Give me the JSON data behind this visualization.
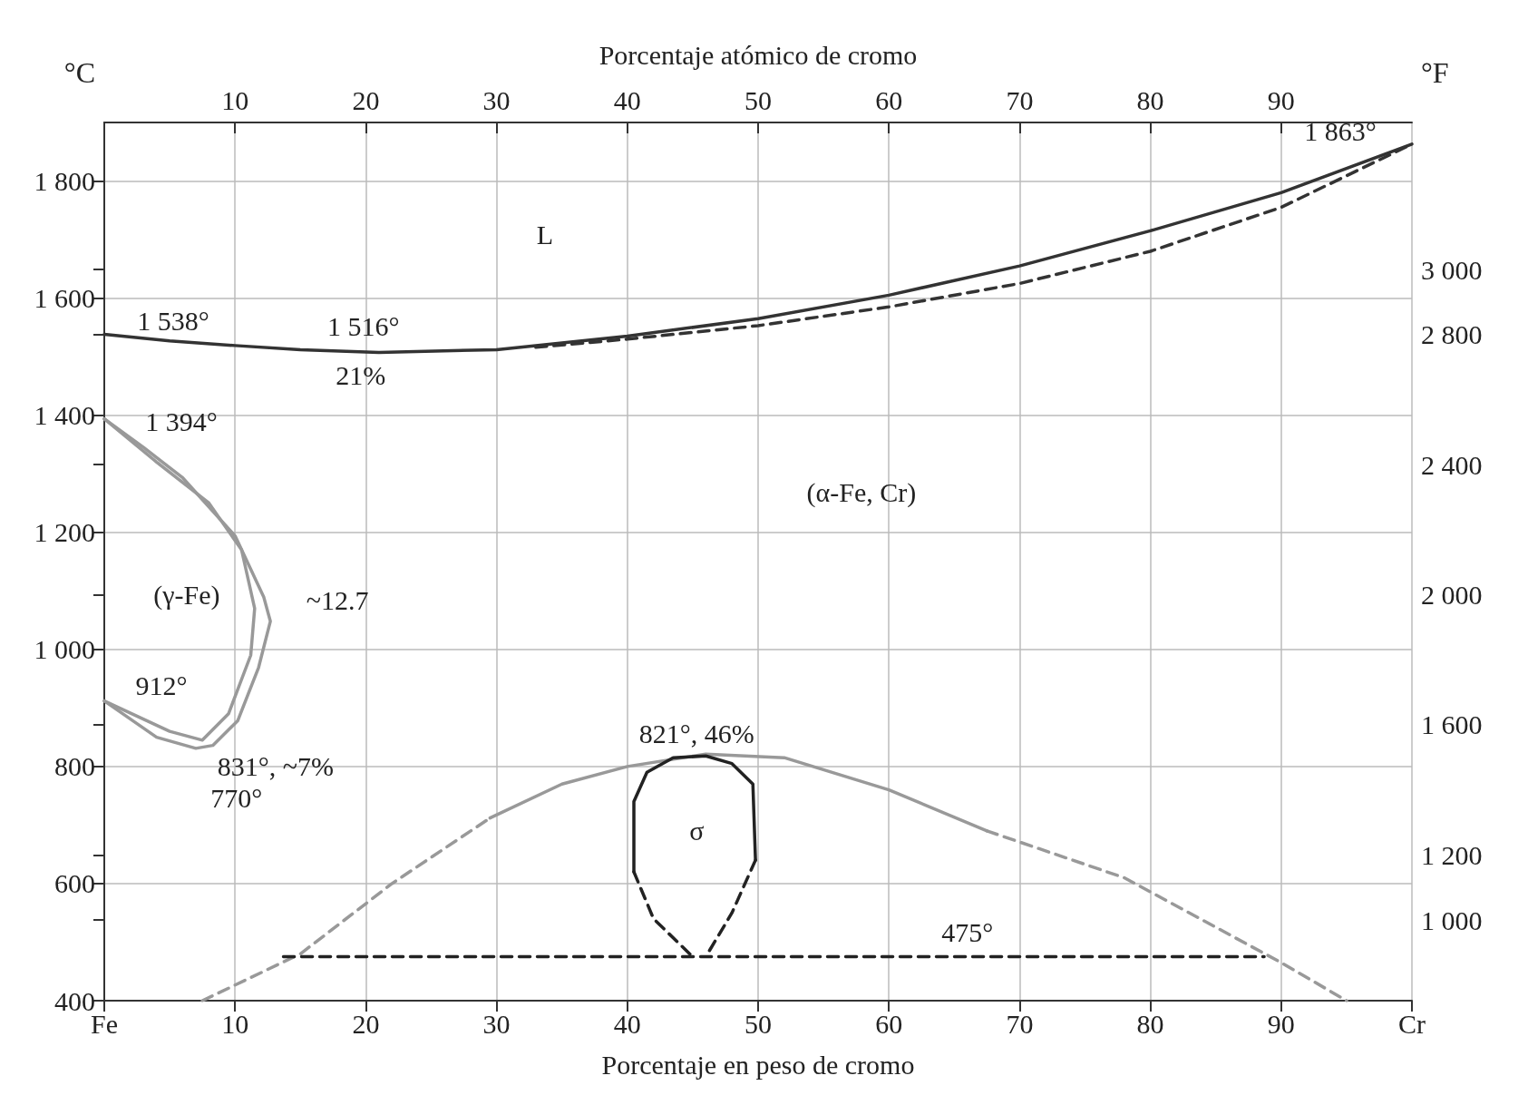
{
  "chart_data": {
    "type": "line",
    "xlabel": "Porcentaje en peso de cromo",
    "x2label": "Porcentaje atómico de cromo",
    "ylabel": "°C",
    "y2label": "°F",
    "xlim": [
      0,
      100
    ],
    "xticks": [
      {
        "value": 0,
        "label": "Fe"
      },
      10,
      20,
      30,
      40,
      50,
      60,
      70,
      80,
      90,
      {
        "value": 100,
        "label": "Cr"
      }
    ],
    "x2lim": [
      0,
      100
    ],
    "x2ticks": [
      10,
      20,
      30,
      40,
      50,
      60,
      70,
      80,
      90
    ],
    "ylim": [
      400,
      1900
    ],
    "yticks": [
      400,
      600,
      800,
      {
        "value": 1000,
        "label": "1 000"
      },
      {
        "value": 1200,
        "label": "1 200"
      },
      {
        "value": 1400,
        "label": "1 400"
      },
      {
        "value": 1600,
        "label": "1 600"
      },
      {
        "value": 1800,
        "label": "1 800"
      }
    ],
    "y2lim": [
      752,
      3452
    ],
    "y2ticks": [
      {
        "value": 1000,
        "label": "1 000"
      },
      {
        "value": 1200,
        "label": "1 200"
      },
      {
        "value": 1600,
        "label": "1 600"
      },
      {
        "value": 2000,
        "label": "2 000"
      },
      {
        "value": 2400,
        "label": "2 400"
      },
      {
        "value": 2800,
        "label": "2 800"
      },
      {
        "value": 3000,
        "label": "3 000"
      }
    ],
    "grid": true,
    "marker": "none",
    "series": [
      {
        "color": "#333333",
        "line_style": "solid",
        "x": [
          0,
          5,
          10,
          15,
          21,
          30,
          40,
          50,
          60,
          70,
          80,
          90,
          100
        ],
        "values": [
          1538,
          1527,
          1519,
          1512,
          1507,
          1512,
          1535,
          1565,
          1605,
          1655,
          1715,
          1780,
          1863
        ]
      },
      {
        "color": "#333333",
        "line_style": "dashed",
        "x": [
          33,
          40,
          50,
          60,
          70,
          80,
          90,
          100
        ],
        "values": [
          1516,
          1530,
          1553,
          1585,
          1625,
          1680,
          1755,
          1863
        ]
      },
      {
        "color": "#999999",
        "line_style": "solid",
        "x": [
          0,
          3,
          6,
          10,
          12.2,
          12.7,
          11.8,
          10.2,
          8.3,
          7,
          4,
          0
        ],
        "values": [
          1394,
          1345,
          1293,
          1194,
          1089,
          1048,
          969,
          878,
          836,
          831,
          850,
          912
        ]
      },
      {
        "color": "#999999",
        "line_style": "solid",
        "x": [
          0,
          4,
          8,
          10.5,
          11.5,
          11.2,
          9.5,
          7.5,
          5,
          0
        ],
        "values": [
          1394,
          1320,
          1250,
          1170,
          1070,
          990,
          890,
          845,
          860,
          912
        ]
      },
      {
        "color": "#999999",
        "line_style": "dashed",
        "x": [
          7.5,
          15,
          22,
          29.5
        ],
        "values": [
          400,
          480,
          600,
          712
        ]
      },
      {
        "color": "#999999",
        "line_style": "solid",
        "x": [
          29.5,
          35,
          40,
          46,
          52,
          60,
          67.5
        ],
        "values": [
          712,
          770,
          800,
          821,
          815,
          760,
          690
        ]
      },
      {
        "color": "#999999",
        "line_style": "dashed",
        "x": [
          67.5,
          78,
          90,
          95
        ],
        "values": [
          690,
          610,
          465,
          400
        ]
      },
      {
        "color": "#222222",
        "line_style": "solid",
        "x": [
          40.5,
          40.5,
          41.5,
          43.5,
          46,
          48,
          49.6,
          49.8
        ],
        "values": [
          620,
          740,
          790,
          815,
          818,
          805,
          770,
          640
        ]
      },
      {
        "color": "#222222",
        "line_style": "dashed",
        "x": [
          40.5,
          42,
          45
        ],
        "values": [
          620,
          540,
          475
        ]
      },
      {
        "color": "#222222",
        "line_style": "dashed",
        "x": [
          49.8,
          48,
          46
        ],
        "values": [
          640,
          550,
          475
        ]
      },
      {
        "color": "#222222",
        "line_style": "dashed",
        "x": [
          13.7,
          88.7
        ],
        "values": [
          475,
          475
        ]
      }
    ],
    "annotations": [
      "L",
      {
        "text": "1 538°",
        "x": 0,
        "y": 1538
      },
      {
        "text": "1 516°",
        "x": 21,
        "y": 1507
      },
      {
        "text": "21%",
        "x": 21,
        "y": 1507
      },
      {
        "text": "1 394°",
        "x": 0,
        "y": 1394
      },
      "(γ-Fe)",
      {
        "text": "~12.7",
        "x": 12.7,
        "y": 1048
      },
      {
        "text": "912°",
        "x": 0,
        "y": 912
      },
      {
        "text": "831°, ~7%",
        "x": 7,
        "y": 831
      },
      "770°",
      "(α-Fe, Cr)",
      {
        "text": "821°, 46%",
        "x": 46,
        "y": 821
      },
      "σ",
      {
        "text": "475°",
        "x": 66,
        "y": 475
      },
      {
        "text": "1 863°",
        "x": 100,
        "y": 1863
      }
    ]
  }
}
